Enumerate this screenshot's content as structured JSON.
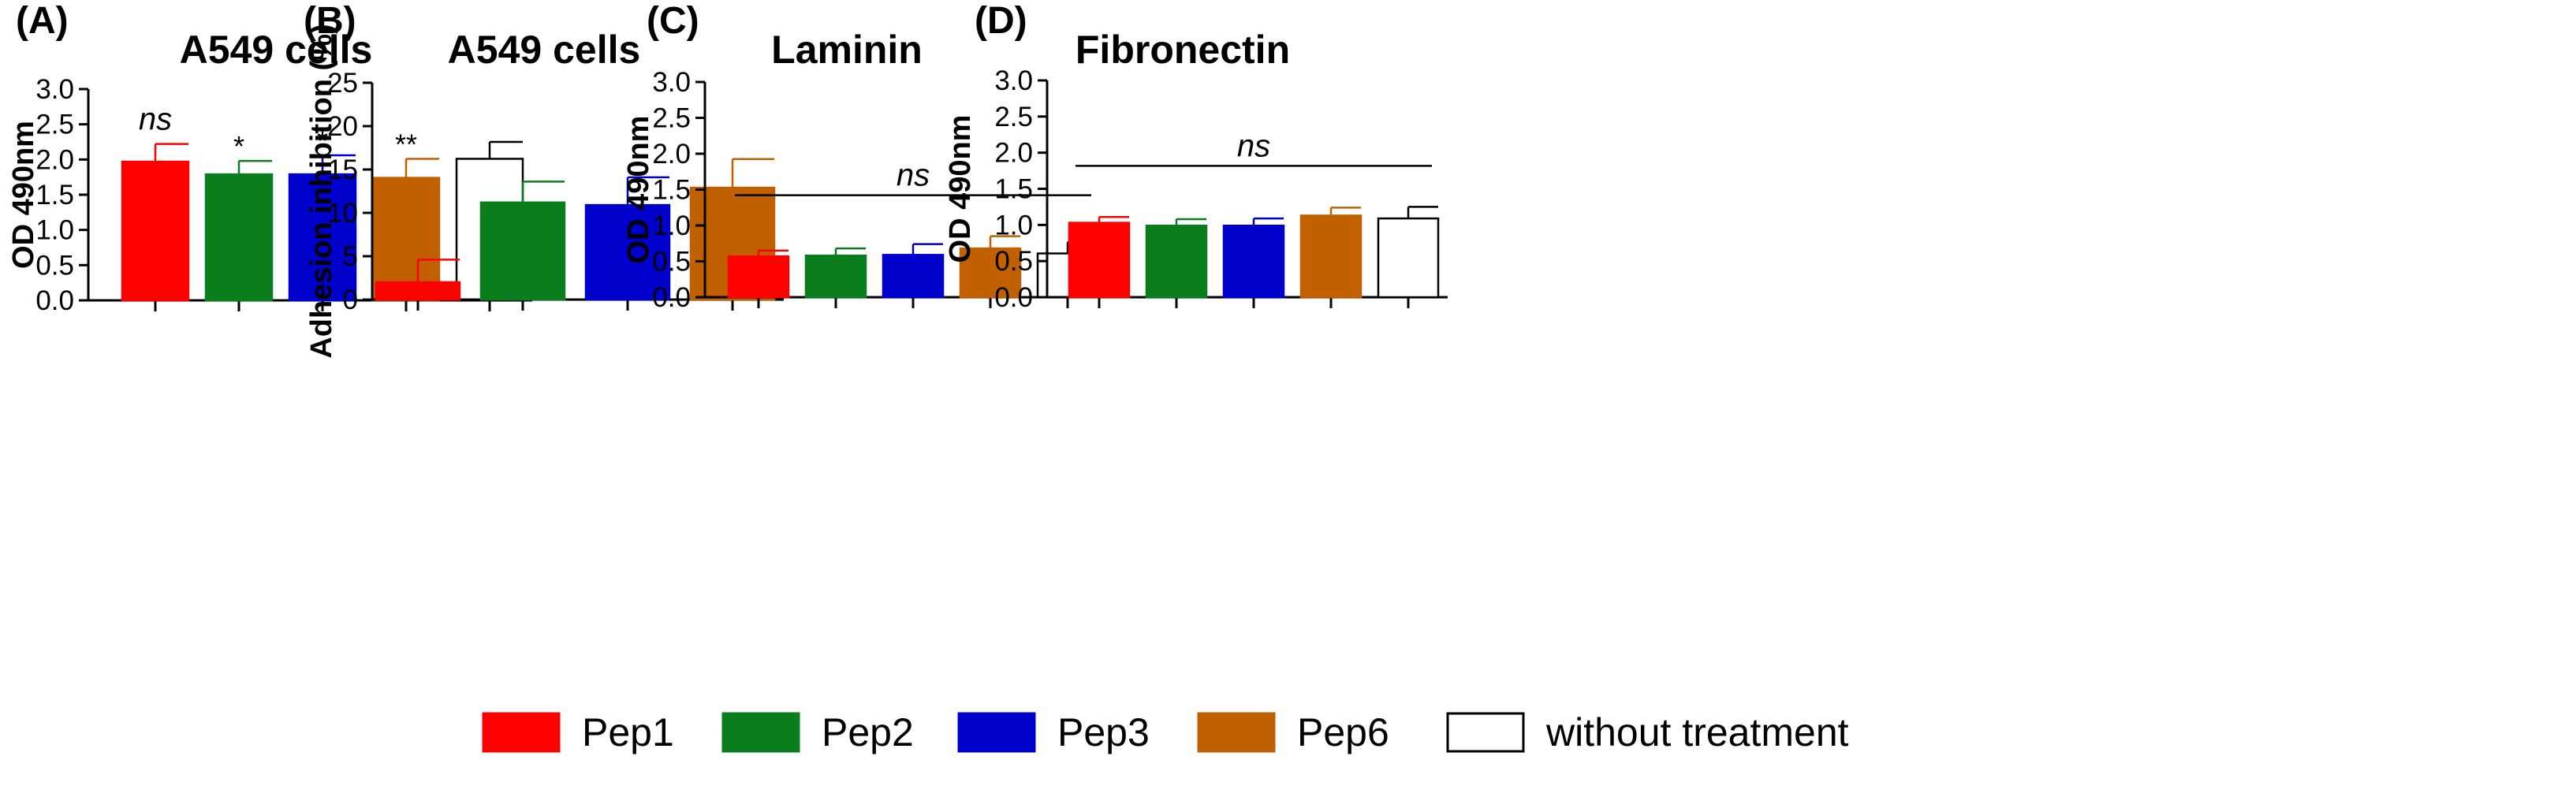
{
  "chart_data": [
    {
      "type": "bar",
      "panel": "(A)",
      "title": "A549 cells",
      "xlabel": "",
      "ylabel": "OD 490nm",
      "ylim": [
        0,
        3
      ],
      "yticks": [
        "0.0",
        "0.5",
        "1.0",
        "1.5",
        "2.0",
        "2.5",
        "3.0"
      ],
      "categories": [
        "Pep1",
        "Pep2",
        "Pep3",
        "Pep6",
        "without treatment"
      ],
      "values": [
        1.97,
        1.79,
        1.79,
        1.74,
        2.01
      ],
      "errors": [
        0.25,
        0.19,
        0.27,
        0.27,
        0.24
      ],
      "annotations": [
        "ns",
        "*",
        "*",
        "**",
        ""
      ],
      "group_annotation": ""
    },
    {
      "type": "bar",
      "panel": "(B)",
      "title": "A549 cells",
      "xlabel": "",
      "ylabel": "Adhesion inhibition (%)",
      "ylim": [
        0,
        25
      ],
      "yticks": [
        "0",
        "5",
        "10",
        "15",
        "20",
        "25"
      ],
      "categories": [
        "Pep1",
        "Pep2",
        "Pep3",
        "Pep6"
      ],
      "values": [
        2.0,
        11.2,
        10.9,
        12.9
      ],
      "errors": [
        2.6,
        2.4,
        3.2,
        3.3
      ],
      "annotations": [
        "",
        "",
        "",
        ""
      ],
      "group_annotation": ""
    },
    {
      "type": "bar",
      "panel": "(C)",
      "title": "Laminin",
      "xlabel": "",
      "ylabel": "OD 490nm",
      "ylim": [
        0,
        3
      ],
      "yticks": [
        "0.0",
        "0.5",
        "1.0",
        "1.5",
        "2.0",
        "2.5",
        "3.0"
      ],
      "categories": [
        "Pep1",
        "Pep2",
        "Pep3",
        "Pep6",
        "without treatment"
      ],
      "values": [
        0.57,
        0.58,
        0.59,
        0.68,
        0.61
      ],
      "errors": [
        0.08,
        0.1,
        0.15,
        0.17,
        0.16
      ],
      "annotations": [
        "",
        "",
        "",
        "",
        ""
      ],
      "group_annotation": "ns"
    },
    {
      "type": "bar",
      "panel": "(D)",
      "title": "Fibronectin",
      "xlabel": "",
      "ylabel": "OD 490nm",
      "ylim": [
        0,
        3
      ],
      "yticks": [
        "0.0",
        "0.5",
        "1.0",
        "1.5",
        "2.0",
        "2.5",
        "3.0"
      ],
      "categories": [
        "Pep1",
        "Pep2",
        "Pep3",
        "Pep6",
        "without treatment"
      ],
      "values": [
        1.03,
        0.99,
        0.99,
        1.13,
        1.09
      ],
      "errors": [
        0.08,
        0.09,
        0.1,
        0.11,
        0.16
      ],
      "annotations": [
        "",
        "",
        "",
        "",
        ""
      ],
      "group_annotation": "ns"
    }
  ],
  "legend": {
    "items": [
      {
        "label": "Pep1",
        "color": "#ff0000"
      },
      {
        "label": "Pep2",
        "color": "#0a7d1d"
      },
      {
        "label": "Pep3",
        "color": "#0000cc"
      },
      {
        "label": "Pep6",
        "color": "#c06000"
      },
      {
        "label": "without treatment",
        "color": "#ffffff"
      }
    ]
  },
  "colors": {
    "Pep1": "#ff0000",
    "Pep2": "#0a7d1d",
    "Pep3": "#0000cc",
    "Pep6": "#c06000",
    "without treatment": "#ffffff"
  }
}
